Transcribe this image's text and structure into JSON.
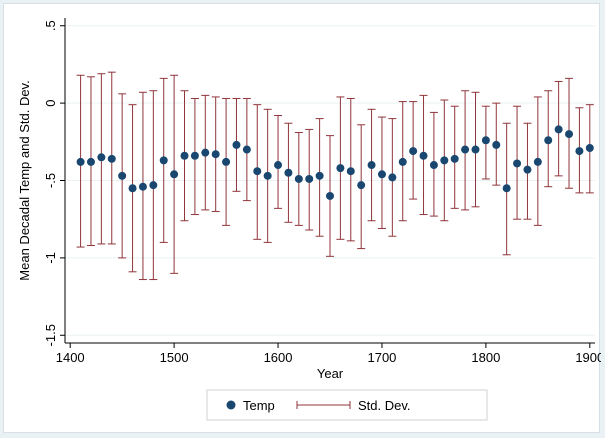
{
  "chart_data": {
    "type": "scatter",
    "xlabel": "Year",
    "ylabel": "Mean Decadal Temp and Std. Dev.",
    "xlim": [
      1395,
      1905
    ],
    "ylim": [
      -1.55,
      0.55
    ],
    "xticks": [
      1400,
      1500,
      1600,
      1700,
      1800,
      1900
    ],
    "xtick_labels": [
      "1400",
      "1500",
      "1600",
      "1700",
      "1800",
      "1900"
    ],
    "yticks": [
      -1.5,
      -1,
      -0.5,
      0,
      0.5
    ],
    "ytick_labels": [
      "-1.5",
      "-1",
      "-.5",
      "0",
      ".5"
    ],
    "grid": true,
    "legend_position": "bottom",
    "colors": {
      "temp": "#1a476f",
      "std": "#90353b"
    },
    "series": [
      {
        "name": "Temp",
        "marker": "dot",
        "x": [
          1410,
          1420,
          1430,
          1440,
          1450,
          1460,
          1470,
          1480,
          1490,
          1500,
          1510,
          1520,
          1530,
          1540,
          1550,
          1560,
          1570,
          1580,
          1590,
          1600,
          1610,
          1620,
          1630,
          1640,
          1650,
          1660,
          1670,
          1680,
          1690,
          1700,
          1710,
          1720,
          1730,
          1740,
          1750,
          1760,
          1770,
          1780,
          1790,
          1800,
          1810,
          1820,
          1830,
          1840,
          1850,
          1860,
          1870,
          1880,
          1890,
          1900
        ],
        "y": [
          -0.38,
          -0.38,
          -0.35,
          -0.36,
          -0.47,
          -0.55,
          -0.54,
          -0.53,
          -0.37,
          -0.46,
          -0.34,
          -0.34,
          -0.32,
          -0.33,
          -0.38,
          -0.27,
          -0.3,
          -0.44,
          -0.47,
          -0.4,
          -0.45,
          -0.49,
          -0.49,
          -0.47,
          -0.6,
          -0.42,
          -0.44,
          -0.53,
          -0.4,
          -0.46,
          -0.48,
          -0.38,
          -0.31,
          -0.34,
          -0.4,
          -0.37,
          -0.36,
          -0.3,
          -0.3,
          -0.24,
          -0.27,
          -0.55,
          -0.39,
          -0.43,
          -0.38,
          -0.24,
          -0.17,
          -0.2,
          -0.31,
          -0.29
        ]
      },
      {
        "name": "Std. Dev.",
        "marker": "range-cap",
        "x": [
          1410,
          1420,
          1430,
          1440,
          1450,
          1460,
          1470,
          1480,
          1490,
          1500,
          1510,
          1520,
          1530,
          1540,
          1550,
          1560,
          1570,
          1580,
          1590,
          1600,
          1610,
          1620,
          1630,
          1640,
          1650,
          1660,
          1670,
          1680,
          1690,
          1700,
          1710,
          1720,
          1730,
          1740,
          1750,
          1760,
          1770,
          1780,
          1790,
          1800,
          1810,
          1820,
          1830,
          1840,
          1850,
          1860,
          1870,
          1880,
          1890,
          1900
        ],
        "low": [
          -0.93,
          -0.92,
          -0.91,
          -0.91,
          -1.0,
          -1.09,
          -1.14,
          -1.14,
          -0.9,
          -1.1,
          -0.76,
          -0.72,
          -0.69,
          -0.7,
          -0.79,
          -0.57,
          -0.63,
          -0.88,
          -0.9,
          -0.68,
          -0.77,
          -0.79,
          -0.82,
          -0.86,
          -0.99,
          -0.88,
          -0.89,
          -0.94,
          -0.76,
          -0.81,
          -0.86,
          -0.76,
          -0.62,
          -0.72,
          -0.73,
          -0.76,
          -0.68,
          -0.69,
          -0.67,
          -0.49,
          -0.53,
          -0.98,
          -0.75,
          -0.75,
          -0.79,
          -0.54,
          -0.47,
          -0.55,
          -0.58,
          -0.58
        ],
        "high": [
          0.18,
          0.17,
          0.19,
          0.2,
          0.06,
          -0.01,
          0.07,
          0.08,
          0.16,
          0.18,
          0.08,
          0.03,
          0.05,
          0.04,
          0.03,
          0.03,
          0.03,
          -0.01,
          -0.04,
          -0.08,
          -0.13,
          -0.19,
          -0.17,
          -0.1,
          -0.21,
          0.04,
          0.03,
          -0.14,
          -0.04,
          -0.09,
          -0.1,
          0.01,
          0.01,
          0.05,
          -0.06,
          0.02,
          -0.02,
          0.08,
          0.07,
          -0.02,
          0.0,
          -0.13,
          -0.02,
          -0.13,
          0.04,
          0.08,
          0.14,
          0.16,
          -0.03,
          -0.01
        ]
      }
    ]
  }
}
